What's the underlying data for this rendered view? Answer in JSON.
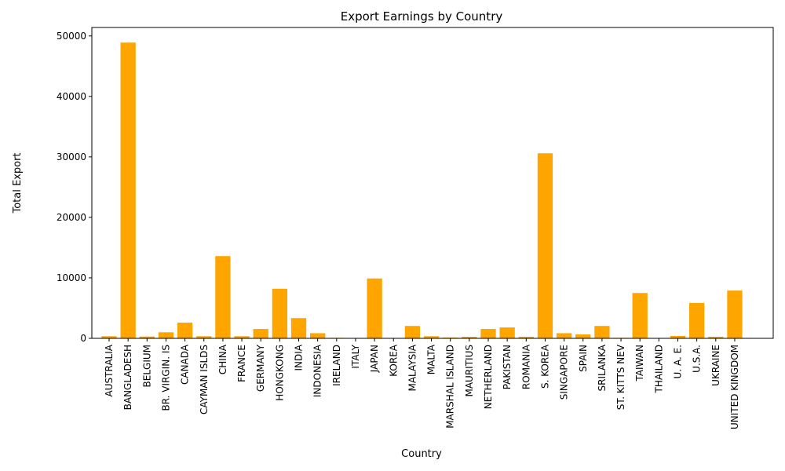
{
  "chart_data": {
    "type": "bar",
    "title": "Export Earnings by Country",
    "xlabel": "Country",
    "ylabel": "Total Export",
    "ylim": [
      0,
      51400
    ],
    "yticks": [
      0,
      10000,
      20000,
      30000,
      40000,
      50000
    ],
    "grid": false,
    "bar_color": "#ffa500",
    "categories": [
      "AUSTRALIA",
      "BANGLADESH",
      "BELGIUM",
      "BR. VIRGIN. IS",
      "CANADA",
      "CAYMAN ISLDS",
      "CHINA",
      "FRANCE",
      "GERMANY",
      "HONGKONG",
      "INDIA",
      "INDONESIA",
      "IRELAND",
      "ITALY",
      "JAPAN",
      "KOREA",
      "MALAYSIA",
      "MALTA",
      "MARSHAL ISLAND",
      "MAURITIUS",
      "NETHERLAND",
      "PAKISTAN",
      "ROMANIA",
      "S. KOREA",
      "SINGAPORE",
      "SPAIN",
      "SRILANKA",
      "ST. KITTS NEV",
      "TAIWAN",
      "THAILAND",
      "U. A. E.",
      "U.S.A.",
      "UKRAINE",
      "UNITED KINGDOM"
    ],
    "values": [
      350,
      48900,
      300,
      1000,
      2600,
      350,
      13600,
      350,
      1550,
      8200,
      3350,
      850,
      80,
      20,
      9900,
      10,
      2050,
      350,
      120,
      250,
      1550,
      1800,
      250,
      30600,
      850,
      650,
      2050,
      80,
      7500,
      10,
      400,
      5850,
      250,
      7900
    ]
  }
}
